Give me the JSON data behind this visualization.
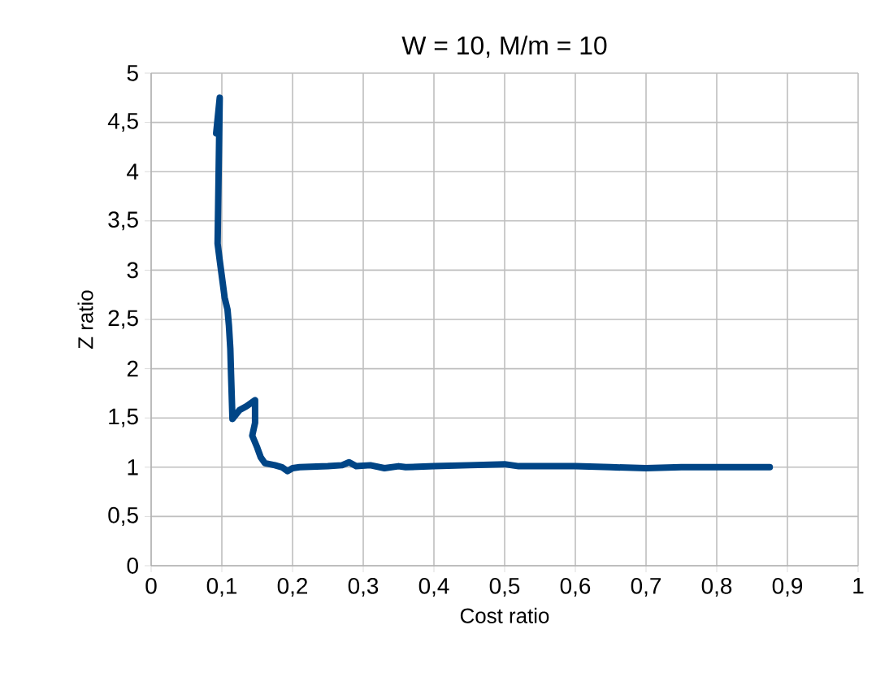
{
  "chart_data": {
    "type": "line",
    "title": "W = 10, M/m = 10",
    "xlabel": "Cost ratio",
    "ylabel": "Z ratio",
    "xlim": [
      0,
      1
    ],
    "xticks": [
      {
        "value": 0,
        "label": "0"
      },
      {
        "value": 0.1,
        "label": "0,1"
      },
      {
        "value": 0.2,
        "label": "0,2"
      },
      {
        "value": 0.3,
        "label": "0,3"
      },
      {
        "value": 0.4,
        "label": "0,4"
      },
      {
        "value": 0.5,
        "label": "0,5"
      },
      {
        "value": 0.6,
        "label": "0,6"
      },
      {
        "value": 0.7,
        "label": "0,7"
      },
      {
        "value": 0.8,
        "label": "0,8"
      },
      {
        "value": 0.9,
        "label": "0,9"
      },
      {
        "value": 1,
        "label": "1"
      }
    ],
    "ylim": [
      0,
      5
    ],
    "yticks": [
      {
        "value": 0,
        "label": "0"
      },
      {
        "value": 0.5,
        "label": "0,5"
      },
      {
        "value": 1,
        "label": "1"
      },
      {
        "value": 1.5,
        "label": "1,5"
      },
      {
        "value": 2,
        "label": "2"
      },
      {
        "value": 2.5,
        "label": "2,5"
      },
      {
        "value": 3,
        "label": "3"
      },
      {
        "value": 3.5,
        "label": "3,5"
      },
      {
        "value": 4,
        "label": "4"
      },
      {
        "value": 4.5,
        "label": "4,5"
      },
      {
        "value": 5,
        "label": "5"
      }
    ],
    "grid": true,
    "series": [
      {
        "color": "#004586",
        "x": [
          0.092,
          0.097,
          0.094,
          0.097,
          0.104,
          0.108,
          0.11,
          0.112,
          0.113,
          0.115,
          0.125,
          0.135,
          0.147,
          0.147,
          0.143,
          0.15,
          0.155,
          0.161,
          0.175,
          0.185,
          0.193,
          0.2,
          0.21,
          0.25,
          0.27,
          0.28,
          0.29,
          0.31,
          0.33,
          0.35,
          0.36,
          0.4,
          0.45,
          0.5,
          0.52,
          0.55,
          0.6,
          0.65,
          0.7,
          0.75,
          0.8,
          0.85,
          0.875
        ],
        "values": [
          4.39,
          4.75,
          3.27,
          3.1,
          2.72,
          2.6,
          2.44,
          2.2,
          1.95,
          1.49,
          1.58,
          1.62,
          1.68,
          1.45,
          1.32,
          1.2,
          1.1,
          1.04,
          1.02,
          1.0,
          0.96,
          0.99,
          1.0,
          1.01,
          1.02,
          1.05,
          1.01,
          1.02,
          0.99,
          1.01,
          1.0,
          1.01,
          1.02,
          1.03,
          1.01,
          1.01,
          1.01,
          1.0,
          0.99,
          1.0,
          1.0,
          1.0,
          1.0
        ]
      }
    ]
  }
}
